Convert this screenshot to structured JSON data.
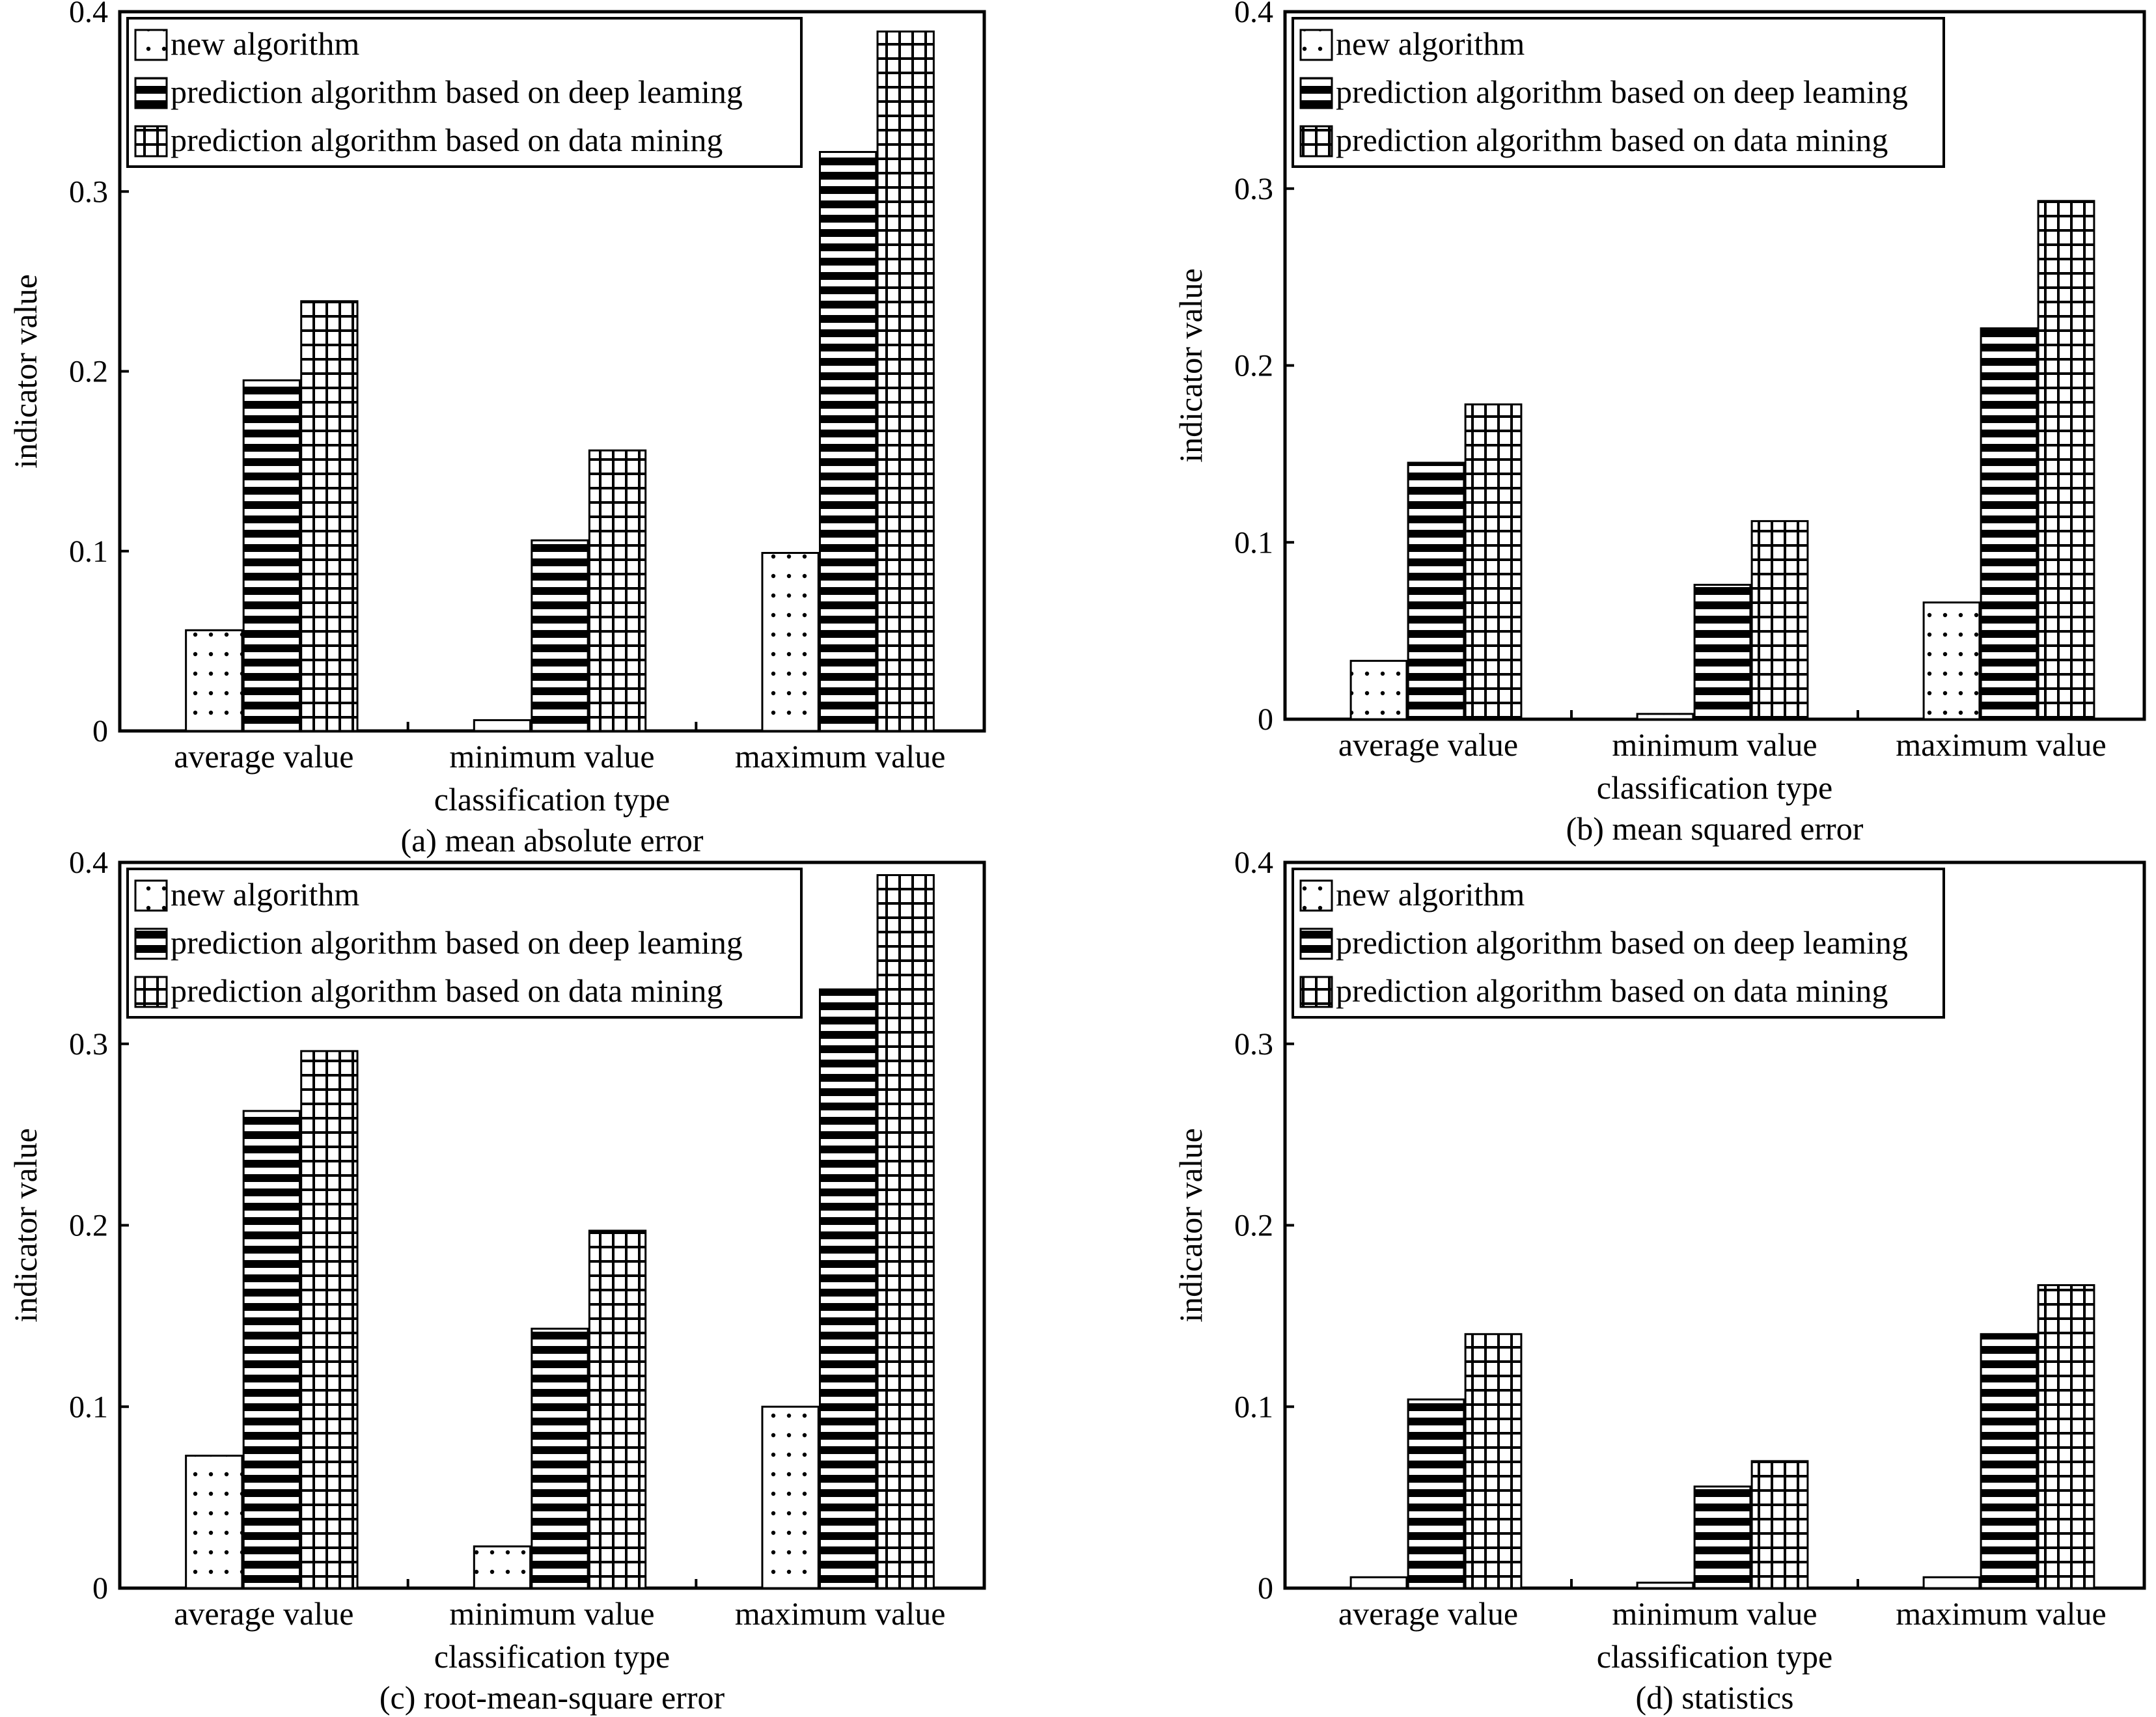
{
  "chart_data": [
    {
      "id": "a",
      "type": "bar",
      "caption": "(a) mean absolute error",
      "xlabel": "classification type",
      "ylabel": "indicator value",
      "ylim": [
        0,
        0.4
      ],
      "yticks": [
        "0",
        "0.1",
        "0.2",
        "0.3",
        "0.4"
      ],
      "categories": [
        "average value",
        "minimum value",
        "maximum value"
      ],
      "series": [
        {
          "name": "new algorithm",
          "pattern": "dots",
          "values": [
            0.056,
            0.006,
            0.099
          ]
        },
        {
          "name": "prediction algorithm based on deep leaming",
          "pattern": "hstripes",
          "values": [
            0.195,
            0.106,
            0.322
          ]
        },
        {
          "name": "prediction algorithm based on data mining",
          "pattern": "grid",
          "values": [
            0.239,
            0.156,
            0.389
          ]
        }
      ],
      "legend": "top-left"
    },
    {
      "id": "b",
      "type": "bar",
      "caption": "(b) mean squared error",
      "xlabel": "classification type",
      "ylabel": "indicator value",
      "ylim": [
        0,
        0.4
      ],
      "yticks": [
        "0",
        "0.1",
        "0.2",
        "0.3",
        "0.4"
      ],
      "categories": [
        "average value",
        "minimum value",
        "maximum value"
      ],
      "series": [
        {
          "name": "new algorithm",
          "pattern": "dots",
          "values": [
            0.033,
            0.003,
            0.066
          ]
        },
        {
          "name": "prediction algorithm based on deep leaming",
          "pattern": "hstripes",
          "values": [
            0.145,
            0.076,
            0.221
          ]
        },
        {
          "name": "prediction algorithm based on data mining",
          "pattern": "grid",
          "values": [
            0.178,
            0.112,
            0.293
          ]
        }
      ],
      "legend": "top-left"
    },
    {
      "id": "c",
      "type": "bar",
      "caption": "(c) root-mean-square error",
      "xlabel": "classification type",
      "ylabel": "indicator value",
      "ylim": [
        0,
        0.4
      ],
      "yticks": [
        "0",
        "0.1",
        "0.2",
        "0.3",
        "0.4"
      ],
      "categories": [
        "average value",
        "minimum value",
        "maximum value"
      ],
      "series": [
        {
          "name": "new algorithm",
          "pattern": "dots",
          "values": [
            0.073,
            0.023,
            0.1
          ]
        },
        {
          "name": "prediction algorithm based on deep leaming",
          "pattern": "hstripes",
          "values": [
            0.263,
            0.143,
            0.33
          ]
        },
        {
          "name": "prediction algorithm based on data mining",
          "pattern": "grid",
          "values": [
            0.296,
            0.197,
            0.393
          ]
        }
      ],
      "legend": "top-left"
    },
    {
      "id": "d",
      "type": "bar",
      "caption": "(d) statistics",
      "xlabel": "classification type",
      "ylabel": "indicator value",
      "ylim": [
        0,
        0.4
      ],
      "yticks": [
        "0",
        "0.1",
        "0.2",
        "0.3",
        "0.4"
      ],
      "categories": [
        "average value",
        "minimum value",
        "maximum value"
      ],
      "series": [
        {
          "name": "new algorithm",
          "pattern": "dots",
          "values": [
            0.006,
            0.003,
            0.006
          ]
        },
        {
          "name": "prediction algorithm based on deep leaming",
          "pattern": "hstripes",
          "values": [
            0.104,
            0.056,
            0.14
          ]
        },
        {
          "name": "prediction algorithm based on data mining",
          "pattern": "grid",
          "values": [
            0.14,
            0.07,
            0.167
          ]
        }
      ],
      "legend": "top-left"
    }
  ]
}
